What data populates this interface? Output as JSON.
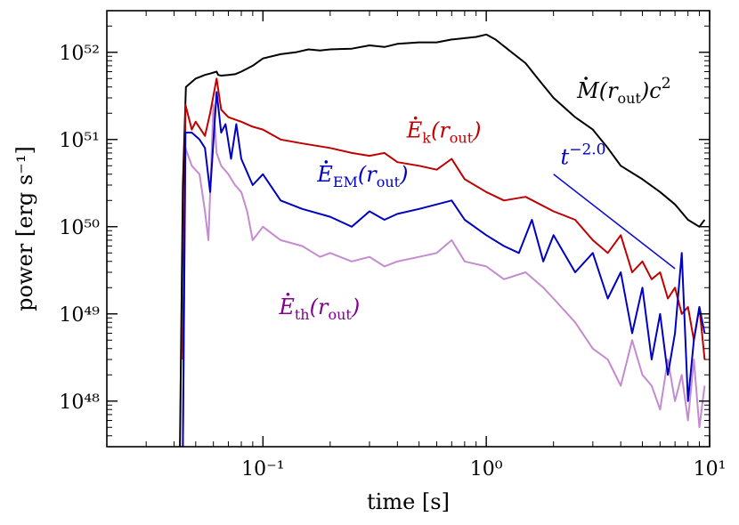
{
  "chart_data": {
    "type": "line",
    "title": "",
    "xlabel": "time [s]",
    "ylabel": "power [erg s⁻¹]",
    "xscale": "log",
    "yscale": "log",
    "xlim": [
      0.02,
      10
    ],
    "ylim": [
      3e+47,
      3e+52
    ],
    "x_ticks": [
      {
        "value": 0.1,
        "label": "10⁻¹"
      },
      {
        "value": 1,
        "label": "10⁰"
      },
      {
        "value": 10,
        "label": "10¹"
      }
    ],
    "y_ticks": [
      {
        "value": 1e+48,
        "label": "10⁴⁸"
      },
      {
        "value": 1e+49,
        "label": "10⁴⁹"
      },
      {
        "value": 1e+50,
        "label": "10⁵⁰"
      },
      {
        "value": 1e+51,
        "label": "10⁵¹"
      },
      {
        "value": 1e+52,
        "label": "10⁵²"
      }
    ],
    "series": [
      {
        "name": "Mdot(r_out) c^2",
        "color": "#000000",
        "x": [
          0.0425,
          0.0438,
          0.0452,
          0.05,
          0.055,
          0.058,
          0.062,
          0.063,
          0.065,
          0.07,
          0.075,
          0.08,
          0.09,
          0.1,
          0.12,
          0.14,
          0.16,
          0.18,
          0.2,
          0.25,
          0.3,
          0.35,
          0.4,
          0.5,
          0.6,
          0.7,
          0.8,
          0.9,
          1.0,
          1.1,
          1.3,
          1.5,
          1.7,
          2.0,
          2.5,
          3.0,
          3.5,
          4.0,
          5.0,
          6.0,
          7.0,
          8.0,
          9.0,
          9.5
        ],
        "values": [
          3e+47,
          3e+50,
          4e+51,
          5e+51,
          5.5e+51,
          5.7e+51,
          6e+51,
          5.5e+51,
          5.4e+51,
          5.5e+51,
          5.6e+51,
          6e+51,
          7e+51,
          8.5e+51,
          9.5e+51,
          1e+52,
          1.08e+52,
          1.05e+52,
          1.08e+52,
          1.1e+52,
          1.2e+52,
          1.15e+52,
          1.25e+52,
          1.3e+52,
          1.3e+52,
          1.4e+52,
          1.45e+52,
          1.5e+52,
          1.6e+52,
          1.4e+52,
          1e+52,
          7.5e+51,
          5e+51,
          3e+51,
          1.8e+51,
          1.3e+51,
          8e+50,
          5e+50,
          3.5e+50,
          2.5e+50,
          1.8e+50,
          1.2e+50,
          1e+50,
          1.2e+50
        ]
      },
      {
        "name": "Edot_k(r_out)",
        "color": "#c00000",
        "x": [
          0.0438,
          0.045,
          0.048,
          0.05,
          0.055,
          0.058,
          0.062,
          0.065,
          0.07,
          0.08,
          0.09,
          0.1,
          0.12,
          0.15,
          0.2,
          0.25,
          0.3,
          0.35,
          0.4,
          0.5,
          0.6,
          0.7,
          0.8,
          1.0,
          1.2,
          1.5,
          2.0,
          2.5,
          3.0,
          3.5,
          4.0,
          4.5,
          5.0,
          5.5,
          6.0,
          6.5,
          7.0,
          7.5,
          8.0,
          8.5,
          9.0,
          9.5
        ],
        "values": [
          3e+48,
          2.5e+51,
          1.3e+51,
          1.6e+51,
          1.1e+51,
          2e+51,
          5e+51,
          2.2e+51,
          1.8e+51,
          1.6e+51,
          1.4e+51,
          1.3e+51,
          1e+51,
          9e+50,
          8e+50,
          7e+50,
          6.5e+50,
          7e+50,
          5.5e+50,
          5e+50,
          4.5e+50,
          6e+50,
          3.5e+50,
          2.5e+50,
          2e+50,
          2.2e+50,
          1.5e+50,
          1.2e+50,
          7e+49,
          5e+49,
          8e+49,
          3e+49,
          4e+49,
          2.5e+49,
          3e+49,
          1.5e+49,
          2e+49,
          1e+49,
          1.2e+49,
          5e+48,
          1.2e+49,
          3e+48
        ]
      },
      {
        "name": "Edot_EM(r_out)",
        "color": "#0000c0",
        "x": [
          0.0438,
          0.045,
          0.048,
          0.052,
          0.055,
          0.058,
          0.062,
          0.065,
          0.068,
          0.072,
          0.076,
          0.08,
          0.09,
          0.1,
          0.12,
          0.15,
          0.2,
          0.25,
          0.3,
          0.35,
          0.4,
          0.5,
          0.6,
          0.7,
          0.8,
          1.0,
          1.2,
          1.4,
          1.6,
          1.8,
          2.0,
          2.5,
          3.0,
          3.5,
          4.0,
          4.5,
          5.0,
          5.5,
          6.0,
          6.5,
          7.0,
          7.5,
          8.0,
          8.5,
          9.0,
          9.5
        ],
        "values": [
          3e+47,
          1.2e+51,
          1.2e+51,
          1e+51,
          8e+50,
          2.5e+50,
          3.5e+51,
          1.2e+51,
          1.5e+51,
          6e+50,
          1.5e+51,
          6e+50,
          3e+50,
          4e+50,
          2e+50,
          1.6e+50,
          1.3e+50,
          1e+50,
          1.5e+50,
          1.2e+50,
          1.4e+50,
          1.6e+50,
          1.8e+50,
          2e+50,
          1.2e+50,
          8e+49,
          6e+49,
          5e+49,
          1.2e+50,
          4e+49,
          8e+49,
          3e+49,
          5e+49,
          1.5e+49,
          3e+49,
          6e+48,
          2e+49,
          3e+48,
          1e+49,
          2e+48,
          6e+48,
          5e+49,
          1e+48,
          5e+48,
          1.2e+49,
          6e+48
        ]
      },
      {
        "name": "Edot_th(r_out)",
        "color": "#c58bd0",
        "x": [
          0.0438,
          0.045,
          0.048,
          0.052,
          0.055,
          0.057,
          0.06,
          0.062,
          0.065,
          0.07,
          0.075,
          0.08,
          0.085,
          0.09,
          0.1,
          0.12,
          0.15,
          0.18,
          0.2,
          0.25,
          0.3,
          0.35,
          0.4,
          0.5,
          0.6,
          0.7,
          0.8,
          1.0,
          1.2,
          1.5,
          1.8,
          2.0,
          2.5,
          3.0,
          3.5,
          4.0,
          4.5,
          5.0,
          5.5,
          6.0,
          6.5,
          7.0,
          7.5,
          8.0,
          8.5,
          9.0,
          9.5
        ],
        "values": [
          3e+47,
          8e+50,
          5e+50,
          4e+50,
          1.5e+50,
          7e+49,
          2.5e+51,
          7e+50,
          5e+50,
          4e+50,
          3e+50,
          2.5e+50,
          1.5e+50,
          7e+49,
          1e+50,
          7e+49,
          6e+49,
          4.5e+49,
          5e+49,
          4e+49,
          4.5e+49,
          3.5e+49,
          4e+49,
          4.5e+49,
          5e+49,
          7e+49,
          4e+49,
          3.5e+49,
          2.5e+49,
          3e+49,
          2e+49,
          1.5e+49,
          8e+48,
          4e+48,
          3e+48,
          1.5e+48,
          5e+48,
          2e+48,
          1.5e+48,
          8e+47,
          3e+48,
          1e+48,
          2e+48,
          6e+47,
          3e+48,
          5e+47,
          1.5e+48
        ]
      },
      {
        "name": "powerlaw",
        "color": "#1010d0",
        "x": [
          2.0,
          7.0
        ],
        "values": [
          4e+50,
          3.3e+49
        ]
      }
    ],
    "annotations": [
      {
        "name": "mdot",
        "base": "M",
        "dot": true,
        "sub": "",
        "pre": "(r",
        "subr": "out",
        "post": ")c",
        "sup": "2",
        "color": "#000000",
        "at_x": 2.55,
        "at_y": 3e+51
      },
      {
        "name": "ek",
        "base": "E",
        "dot": true,
        "sub": "k",
        "pre": "(r",
        "subr": "out",
        "post": ")",
        "sup": "",
        "color": "#c00000",
        "at_x": 0.44,
        "at_y": 1.05e+51
      },
      {
        "name": "eem",
        "base": "E",
        "dot": true,
        "sub": "EM",
        "pre": "(r",
        "subr": "out",
        "post": ")",
        "sup": "",
        "color": "#0000c0",
        "at_x": 0.175,
        "at_y": 3.3e+50
      },
      {
        "name": "eth",
        "base": "E",
        "dot": true,
        "sub": "th",
        "pre": "(r",
        "subr": "out",
        "post": ")",
        "sup": "",
        "color": "#800090",
        "at_x": 0.118,
        "at_y": 1e+49
      },
      {
        "name": "tpow",
        "base": "t",
        "dot": false,
        "sub": "",
        "pre": "",
        "subr": "",
        "post": "",
        "sup": "−2.0",
        "color": "#0000c0",
        "at_x": 2.15,
        "at_y": 5.2e+50
      }
    ]
  }
}
